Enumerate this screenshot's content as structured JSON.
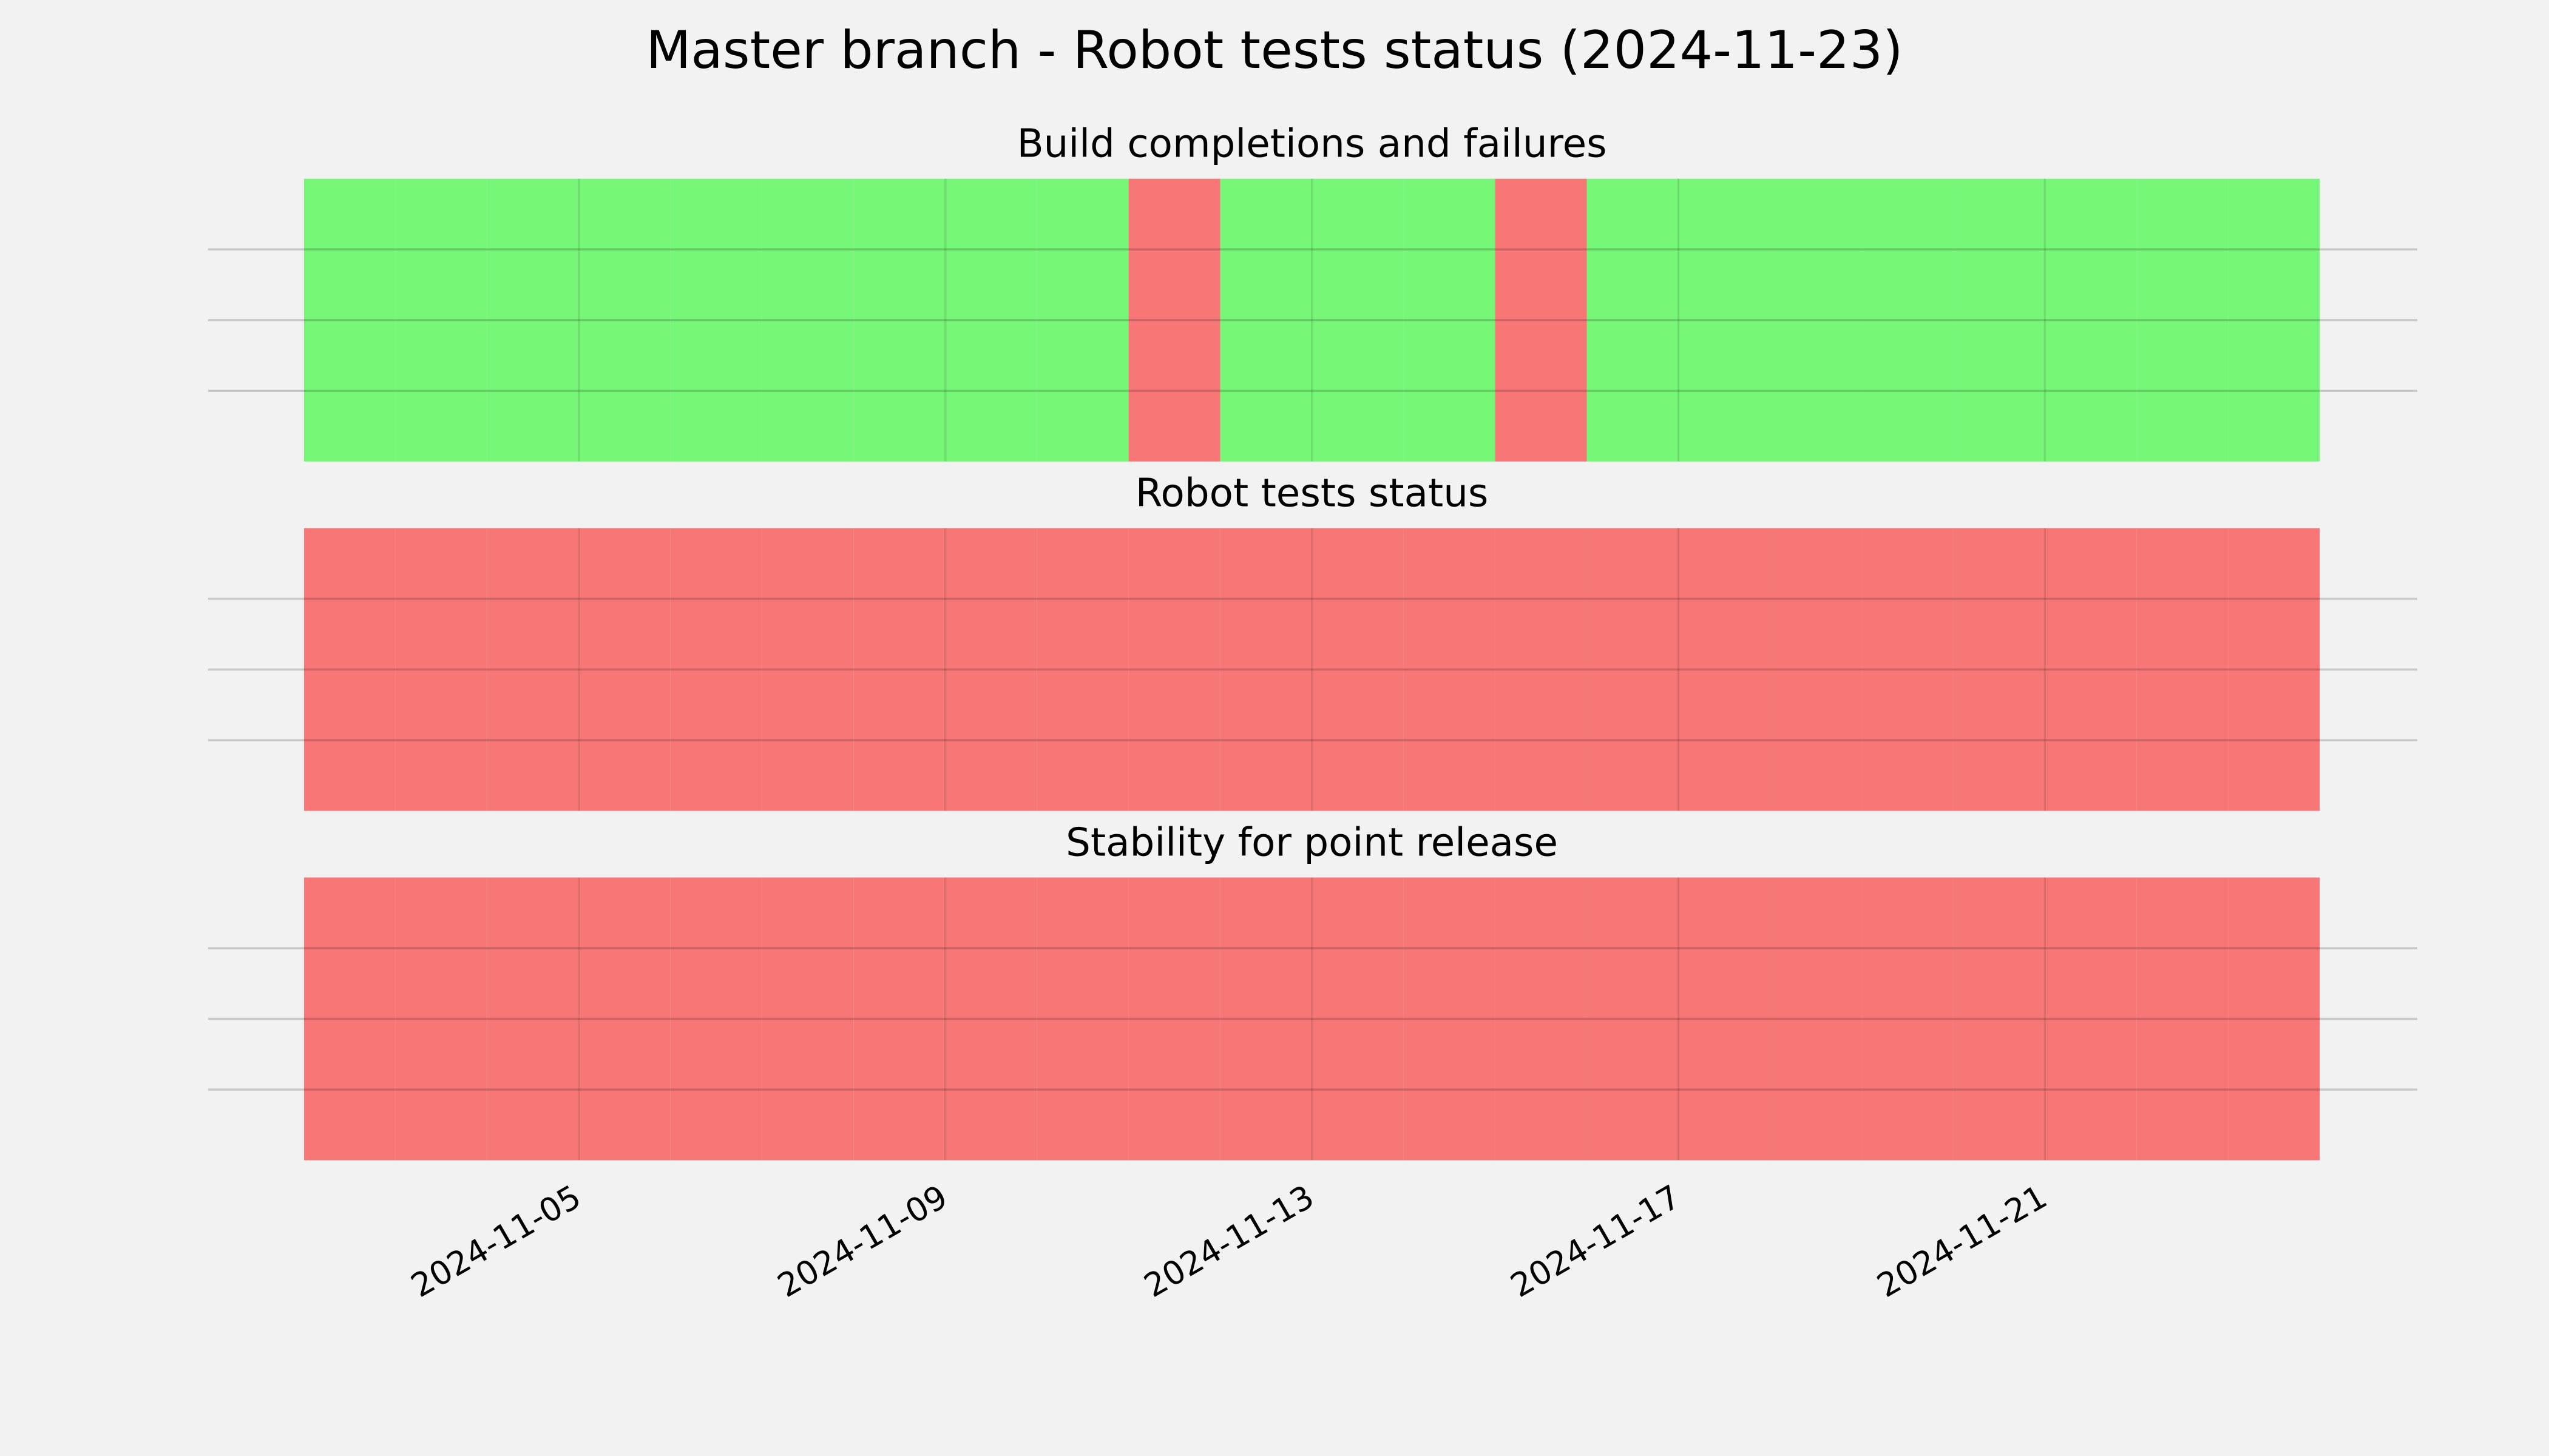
{
  "title": "Master branch - Robot tests status (2024-11-23)",
  "chart_data": [
    {
      "type": "status",
      "title": "Build completions and failures",
      "x": [
        "2024-11-02",
        "2024-11-03",
        "2024-11-04",
        "2024-11-05",
        "2024-11-06",
        "2024-11-07",
        "2024-11-08",
        "2024-11-09",
        "2024-11-10",
        "2024-11-11",
        "2024-11-12",
        "2024-11-13",
        "2024-11-14",
        "2024-11-15",
        "2024-11-16",
        "2024-11-17",
        "2024-11-18",
        "2024-11-19",
        "2024-11-20",
        "2024-11-21",
        "2024-11-22",
        "2024-11-23"
      ],
      "values": [
        1,
        1,
        1,
        1,
        1,
        1,
        1,
        1,
        1,
        1,
        1,
        1,
        1,
        1,
        1,
        1,
        1,
        1,
        1,
        1,
        1,
        1
      ],
      "status": [
        "pass",
        "pass",
        "pass",
        "pass",
        "pass",
        "pass",
        "pass",
        "pass",
        "pass",
        "fail",
        "pass",
        "pass",
        "pass",
        "fail",
        "pass",
        "pass",
        "pass",
        "pass",
        "pass",
        "pass",
        "pass",
        "pass"
      ],
      "colors": {
        "pass": "#77f777",
        "fail": "#f77777"
      },
      "xlim": [
        "2024-11-02",
        "2024-11-24"
      ],
      "ylim": [
        0,
        1
      ],
      "yticks": [
        0.25,
        0.5,
        0.75
      ],
      "xticks": [
        "2024-11-05",
        "2024-11-09",
        "2024-11-13",
        "2024-11-17",
        "2024-11-21"
      ],
      "grid": true
    },
    {
      "type": "status",
      "title": "Robot tests status",
      "x": [
        "2024-11-02",
        "2024-11-03",
        "2024-11-04",
        "2024-11-05",
        "2024-11-06",
        "2024-11-07",
        "2024-11-08",
        "2024-11-09",
        "2024-11-10",
        "2024-11-11",
        "2024-11-12",
        "2024-11-13",
        "2024-11-14",
        "2024-11-15",
        "2024-11-16",
        "2024-11-17",
        "2024-11-18",
        "2024-11-19",
        "2024-11-20",
        "2024-11-21",
        "2024-11-22",
        "2024-11-23"
      ],
      "values": [
        1,
        1,
        1,
        1,
        1,
        1,
        1,
        1,
        1,
        1,
        1,
        1,
        1,
        1,
        1,
        1,
        1,
        1,
        1,
        1,
        1,
        1
      ],
      "status": [
        "fail",
        "fail",
        "fail",
        "fail",
        "fail",
        "fail",
        "fail",
        "fail",
        "fail",
        "fail",
        "fail",
        "fail",
        "fail",
        "fail",
        "fail",
        "fail",
        "fail",
        "fail",
        "fail",
        "fail",
        "fail",
        "fail"
      ],
      "colors": {
        "pass": "#77f777",
        "fail": "#f77777"
      },
      "xlim": [
        "2024-11-02",
        "2024-11-24"
      ],
      "ylim": [
        0,
        1
      ],
      "yticks": [
        0.25,
        0.5,
        0.75
      ],
      "xticks": [
        "2024-11-05",
        "2024-11-09",
        "2024-11-13",
        "2024-11-17",
        "2024-11-21"
      ],
      "grid": true
    },
    {
      "type": "status",
      "title": "Stability for point release",
      "x": [
        "2024-11-02",
        "2024-11-03",
        "2024-11-04",
        "2024-11-05",
        "2024-11-06",
        "2024-11-07",
        "2024-11-08",
        "2024-11-09",
        "2024-11-10",
        "2024-11-11",
        "2024-11-12",
        "2024-11-13",
        "2024-11-14",
        "2024-11-15",
        "2024-11-16",
        "2024-11-17",
        "2024-11-18",
        "2024-11-19",
        "2024-11-20",
        "2024-11-21",
        "2024-11-22",
        "2024-11-23"
      ],
      "values": [
        1,
        1,
        1,
        1,
        1,
        1,
        1,
        1,
        1,
        1,
        1,
        1,
        1,
        1,
        1,
        1,
        1,
        1,
        1,
        1,
        1,
        1
      ],
      "status": [
        "fail",
        "fail",
        "fail",
        "fail",
        "fail",
        "fail",
        "fail",
        "fail",
        "fail",
        "fail",
        "fail",
        "fail",
        "fail",
        "fail",
        "fail",
        "fail",
        "fail",
        "fail",
        "fail",
        "fail",
        "fail",
        "fail"
      ],
      "colors": {
        "pass": "#77f777",
        "fail": "#f77777"
      },
      "xlim": [
        "2024-11-02",
        "2024-11-24"
      ],
      "ylim": [
        0,
        1
      ],
      "yticks": [
        0.25,
        0.5,
        0.75
      ],
      "xticks": [
        "2024-11-05",
        "2024-11-09",
        "2024-11-13",
        "2024-11-17",
        "2024-11-21"
      ],
      "grid": true,
      "show_xticklabels": true
    }
  ]
}
